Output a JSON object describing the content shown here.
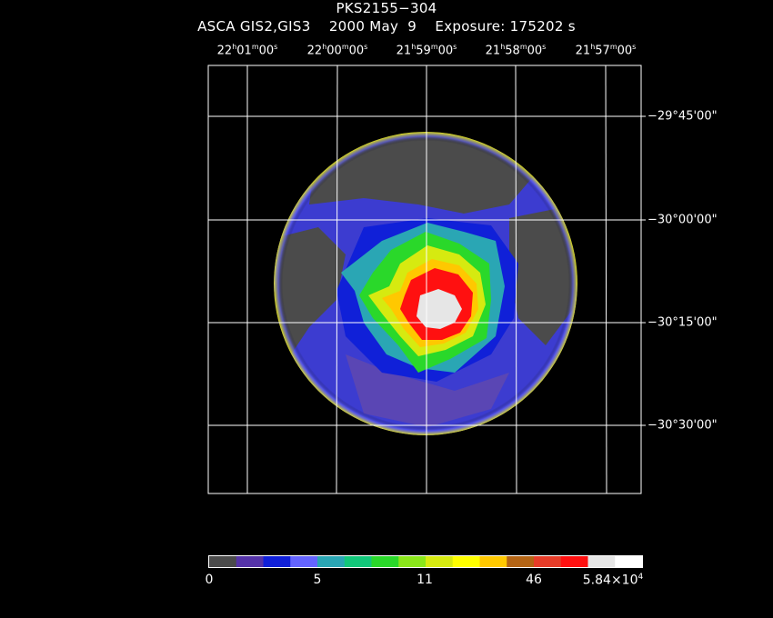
{
  "title": {
    "object": "PKS2155−304",
    "subtitle": "ASCA GIS2,GIS3    2000 May  9    Exposure: 175202 s"
  },
  "ra_labels": [
    {
      "h": "22",
      "m": "01",
      "s": "00"
    },
    {
      "h": "22",
      "m": "00",
      "s": "00"
    },
    {
      "h": "21",
      "m": "59",
      "s": "00"
    },
    {
      "h": "21",
      "m": "58",
      "s": "00"
    },
    {
      "h": "21",
      "m": "57",
      "s": "00"
    }
  ],
  "dec_labels": [
    {
      "text": "−29°45'00\""
    },
    {
      "text": "−30°00'00\""
    },
    {
      "text": "−30°15'00\""
    },
    {
      "text": "−30°30'00\""
    }
  ],
  "colorbar": {
    "colors": [
      "#4b4b4b",
      "#5533a8",
      "#1020d8",
      "#6464ff",
      "#2aa6b4",
      "#12c77a",
      "#2ad82a",
      "#8ae61a",
      "#d6ea10",
      "#ffff00",
      "#ffc800",
      "#b46414",
      "#e63c28",
      "#ff1010",
      "#e6e6e6",
      "#ffffff"
    ],
    "tick_labels": [
      "0",
      "5",
      "11",
      "46"
    ],
    "max_label_mantissa": "5.84×10",
    "max_label_exponent": "4"
  }
}
